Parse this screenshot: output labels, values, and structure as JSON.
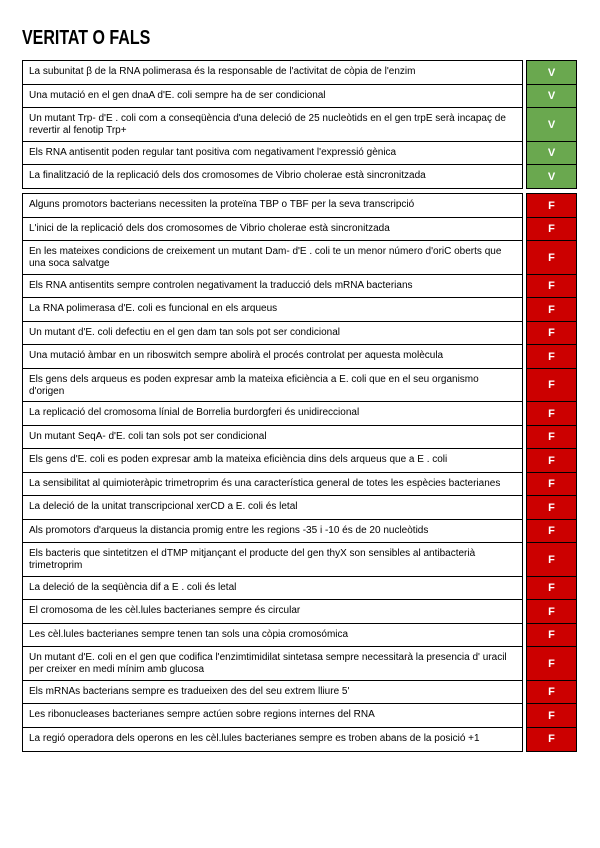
{
  "page": {
    "title": "VERITAT O FALS"
  },
  "table": {
    "true_label": "V",
    "false_label": "F",
    "colors": {
      "true_bg": "#6aa84f",
      "false_bg": "#cc0000",
      "border": "#000000",
      "text": "#000000",
      "badge_text": "#ffffff"
    },
    "sections": [
      {
        "answer": "V",
        "rows": [
          "La subunitat β de la RNA polimerasa és la responsable de l'activitat de còpia de l'enzim",
          "Una mutació en el gen dnaA d'E. coli sempre ha de ser condicional",
          "Un mutant Trp- d'E . coli com a conseqüència d'una deleció de 25 nucleòtids en el gen trpE  serà incapaç de revertir al fenotip Trp+",
          "Els RNA antisentit poden regular tant positiva com negativament l'expressió gènica",
          "La finalització de la replicació dels dos cromosomes de Vibrio cholerae està sincronitzada"
        ]
      },
      {
        "answer": "F",
        "rows": [
          "Alguns promotors bacterians necessiten la proteïna TBP o TBF per la seva transcripció",
          "L'inici de la replicació dels dos cromosomes de Vibrio cholerae està sincronitzada",
          "En les mateixes condicions de creixement un mutant Dam- d'E . coli te un menor número d'oriC oberts que una soca salvatge",
          "Els RNA antisentits sempre controlen negativament la traducció dels mRNA bacterians",
          "La RNA polimerasa d'E. coli es funcional en els arqueus",
          "Un mutant d'E. coli defectiu en el gen dam tan sols pot ser condicional",
          "Una mutació àmbar en un riboswitch sempre abolirà el procés controlat per aquesta molècula",
          "Els gens dels arqueus es poden expresar amb la mateixa eficiència a E. coli que en el seu organismo d'origen",
          "La replicació del cromosoma línial de Borrelia burdorgferi és unidireccional",
          "Un mutant SeqA- d'E. coli tan sols pot ser condicional",
          "Els gens d'E. coli es poden expresar amb la mateixa eficiència dins dels arqueus que a E . coli",
          "La sensibilitat al quimioteràpic trimetroprim és una característica general de totes les espècies bacterianes",
          "La deleció de la unitat transcripcional xerCD a E. coli és letal",
          "Als promotors d'arqueus la distancia promig entre les regions -35 i -10 és de 20 nucleòtids",
          "Els bacteris que sintetitzen el dTMP mitjançant el producte del gen thyX son sensibles al antibacterià trimetroprim",
          "La deleció de la seqüència dif a E . coli és letal",
          "El cromosoma de les cèl.lules bacterianes sempre és circular",
          "Les cèl.lules bacterianes sempre tenen tan sols una còpia cromosómica",
          "Un mutant d'E. coli en el gen que codifica l'enzimtimidilat sintetasa sempre necessitarà la presencia d' uracil per creixer en medi mínim amb glucosa",
          "Els mRNAs bacterians sempre es tradueixen des del seu extrem lliure 5'",
          "Les ribonucleases bacterianes sempre actúen sobre regions internes del RNA",
          "La regió operadora dels operons en les cèl.lules bacterianes sempre es troben abans de la posició +1"
        ]
      }
    ]
  }
}
